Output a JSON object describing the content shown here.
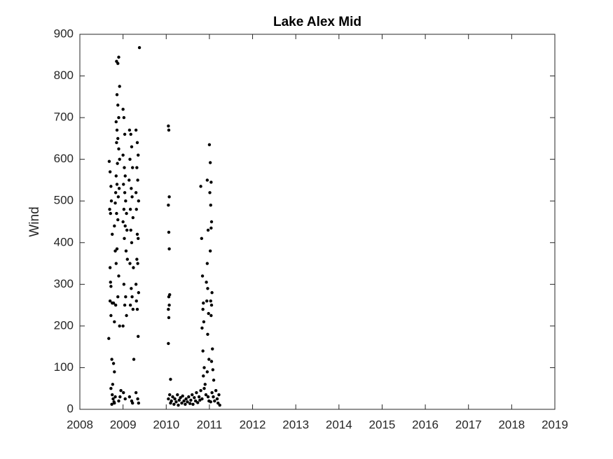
{
  "chart_data": {
    "type": "scatter",
    "title": "Lake Alex Mid",
    "y_label": "Wind",
    "color": "#000000",
    "x": [
      2008.68,
      2008.7,
      2008.72,
      2008.69,
      2008.71,
      2008.73,
      2008.75,
      2008.7,
      2008.71,
      2008.72,
      2008.7,
      2008.75,
      2008.72,
      2008.67,
      2008.74,
      2008.78,
      2008.8,
      2008.76,
      2008.72,
      2008.75,
      2008.77,
      2008.79,
      2008.74,
      2008.82,
      2008.8,
      2008.85,
      2008.88,
      2008.9,
      2008.86,
      2008.92,
      2008.88,
      2008.9,
      2008.84,
      2008.86,
      2008.88,
      2008.85,
      2008.9,
      2008.92,
      2008.87,
      2008.84,
      2008.86,
      2008.83,
      2008.89,
      2008.91,
      2008.82,
      2008.85,
      2008.88,
      2008.8,
      2008.82,
      2008.86,
      2008.84,
      2008.9,
      2008.78,
      2008.83,
      2008.88,
      2008.8,
      2008.92,
      2008.93,
      2008.95,
      2008.9,
      2009.0,
      2009.02,
      2009.04,
      2009.0,
      2009.03,
      2009.05,
      2009.01,
      2009.04,
      2009.06,
      2009.02,
      2009.08,
      2009.0,
      2009.05,
      2009.09,
      2009.03,
      2009.07,
      2009.1,
      2009.02,
      2009.06,
      2009.04,
      2009.08,
      2009.0,
      2009.01,
      2009.05,
      2009.15,
      2009.18,
      2009.2,
      2009.16,
      2009.22,
      2009.14,
      2009.19,
      2009.21,
      2009.17,
      2009.23,
      2009.18,
      2009.2,
      2009.16,
      2009.24,
      2009.19,
      2009.21,
      2009.17,
      2009.23,
      2009.15,
      2009.2,
      2009.22,
      2009.25,
      2009.3,
      2009.33,
      2009.35,
      2009.32,
      2009.34,
      2009.3,
      2009.36,
      2009.31,
      2009.33,
      2009.35,
      2009.32,
      2009.34,
      2009.3,
      2009.36,
      2009.31,
      2009.33,
      2009.35,
      2009.3,
      2009.34,
      2009.36,
      2009.38,
      2010.05,
      2010.06,
      2010.07,
      2010.05,
      2010.06,
      2010.07,
      2010.08,
      2010.06,
      2010.07,
      2010.05,
      2010.06,
      2010.05,
      2010.1,
      2010.05,
      2010.08,
      2010.1,
      2010.12,
      2010.15,
      2010.18,
      2010.2,
      2010.23,
      2010.26,
      2010.28,
      2010.3,
      2010.33,
      2010.36,
      2010.38,
      2010.41,
      2010.44,
      2010.46,
      2010.49,
      2010.52,
      2010.55,
      2010.57,
      2010.6,
      2010.62,
      2010.65,
      2010.68,
      2010.7,
      2010.73,
      2010.76,
      2010.78,
      2010.8,
      2010.83,
      2010.8,
      2010.82,
      2010.84,
      2010.86,
      2010.85,
      2010.87,
      2010.83,
      2010.85,
      2010.88,
      2010.86,
      2010.9,
      2010.88,
      2010.92,
      2010.95,
      2010.97,
      2010.95,
      2010.93,
      2010.96,
      2010.94,
      2010.98,
      2010.96,
      2010.99,
      2010.95,
      2010.97,
      2010.99,
      2011.0,
      2011.02,
      2011.04,
      2011.01,
      2011.03,
      2011.05,
      2011.04,
      2011.02,
      2011.06,
      2011.03,
      2011.05,
      2011.04,
      2011.07,
      2011.05,
      2011.08,
      2011.1,
      2011.06,
      2011.09,
      2011.12,
      2011.15,
      2011.18,
      2011.2,
      2011.22,
      2011.24,
      2011.03
    ],
    "values": [
      595,
      570,
      535,
      480,
      470,
      500,
      420,
      340,
      305,
      295,
      260,
      255,
      225,
      170,
      120,
      110,
      90,
      60,
      50,
      35,
      25,
      18,
      12,
      30,
      15,
      835,
      830,
      845,
      755,
      775,
      730,
      700,
      690,
      670,
      650,
      640,
      625,
      600,
      590,
      560,
      540,
      520,
      510,
      530,
      495,
      470,
      455,
      440,
      380,
      385,
      350,
      320,
      255,
      250,
      270,
      210,
      200,
      30,
      45,
      20,
      720,
      700,
      660,
      610,
      580,
      560,
      540,
      520,
      500,
      480,
      470,
      450,
      440,
      430,
      410,
      380,
      360,
      300,
      270,
      250,
      225,
      200,
      40,
      25,
      670,
      660,
      630,
      600,
      580,
      550,
      530,
      510,
      480,
      460,
      430,
      400,
      350,
      340,
      290,
      270,
      250,
      240,
      30,
      20,
      15,
      120,
      670,
      640,
      610,
      580,
      550,
      520,
      500,
      480,
      420,
      410,
      360,
      350,
      300,
      280,
      260,
      240,
      175,
      40,
      25,
      15,
      868,
      680,
      670,
      510,
      490,
      425,
      385,
      275,
      270,
      250,
      240,
      220,
      158,
      72,
      25,
      35,
      15,
      20,
      30,
      12,
      25,
      18,
      35,
      10,
      22,
      28,
      15,
      32,
      20,
      12,
      25,
      18,
      30,
      14,
      22,
      35,
      12,
      28,
      20,
      40,
      16,
      30,
      22,
      45,
      25,
      535,
      410,
      320,
      255,
      240,
      210,
      195,
      140,
      100,
      80,
      60,
      50,
      35,
      550,
      430,
      350,
      305,
      290,
      260,
      230,
      180,
      120,
      90,
      30,
      20,
      635,
      592,
      545,
      520,
      490,
      450,
      435,
      380,
      280,
      260,
      250,
      225,
      145,
      115,
      95,
      70,
      40,
      30,
      20,
      45,
      25,
      15,
      35,
      10,
      18
    ],
    "xlim": [
      2008,
      2019
    ],
    "xticks": [
      2008,
      2009,
      2010,
      2011,
      2012,
      2013,
      2014,
      2015,
      2016,
      2017,
      2018,
      2019
    ],
    "ylim": [
      0,
      900
    ],
    "yticks": [
      0,
      100,
      200,
      300,
      400,
      500,
      600,
      700,
      800,
      900
    ]
  }
}
